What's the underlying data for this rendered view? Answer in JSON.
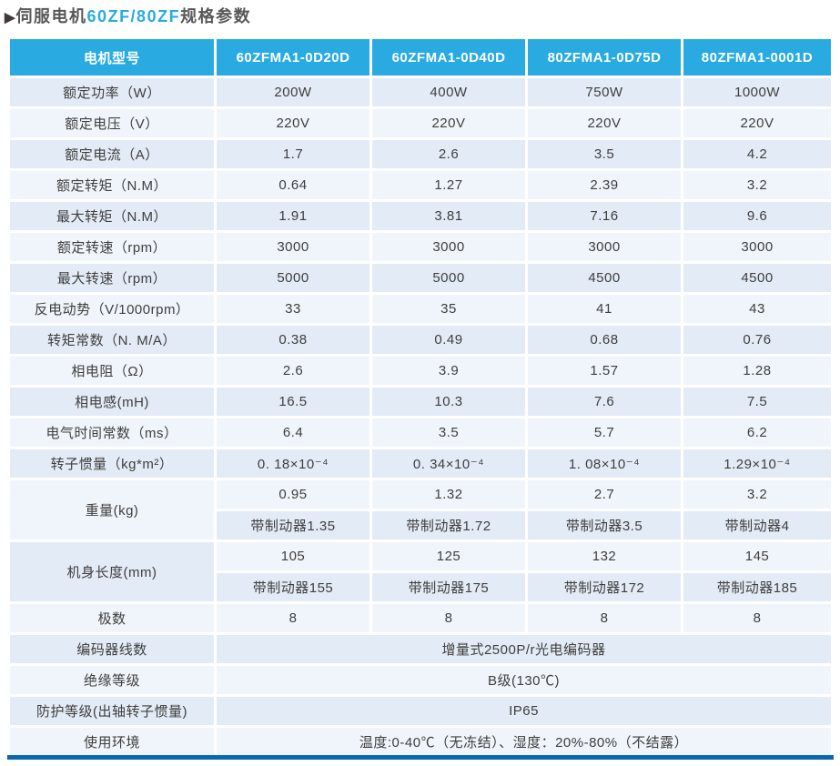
{
  "title": {
    "arrow": "▶",
    "prefix": "伺服电机",
    "highlight": "60ZF/80ZF",
    "suffix": "规格参数"
  },
  "colors": {
    "header_bg": "#29abe2",
    "accent": "#29abe2",
    "row_shade_a": "#e3ebf6",
    "row_shade_b": "#f0f5fb",
    "bottom_bar": "#0a67b0",
    "cell_text": "#3e3e3e",
    "title_text": "#595757"
  },
  "table": {
    "header": [
      "电机型号",
      "60ZFMA1-0D20D",
      "60ZFMA1-0D40D",
      "80ZFMA1-0D75D",
      "80ZFMA1-0001D"
    ],
    "rows": [
      {
        "label": "额定功率（W）",
        "values": [
          "200W",
          "400W",
          "750W",
          "1000W"
        ]
      },
      {
        "label": "额定电压（V）",
        "values": [
          "220V",
          "220V",
          "220V",
          "220V"
        ]
      },
      {
        "label": "额定电流（A）",
        "values": [
          "1.7",
          "2.6",
          "3.5",
          "4.2"
        ]
      },
      {
        "label": "额定转矩（N.M）",
        "values": [
          "0.64",
          "1.27",
          "2.39",
          "3.2"
        ]
      },
      {
        "label": "最大转矩（N.M）",
        "values": [
          "1.91",
          "3.81",
          "7.16",
          "9.6"
        ]
      },
      {
        "label": "额定转速（rpm）",
        "values": [
          "3000",
          "3000",
          "3000",
          "3000"
        ]
      },
      {
        "label": "最大转速（rpm）",
        "values": [
          "5000",
          "5000",
          "4500",
          "4500"
        ]
      },
      {
        "label": "反电动势（V/1000rpm）",
        "values": [
          "33",
          "35",
          "41",
          "43"
        ]
      },
      {
        "label": "转矩常数（N. M/A）",
        "values": [
          "0.38",
          "0.49",
          "0.68",
          "0.76"
        ]
      },
      {
        "label": "相电阻（Ω）",
        "values": [
          "2.6",
          "3.9",
          "1.57",
          "1.28"
        ]
      },
      {
        "label": "相电感(mH)",
        "values": [
          "16.5",
          "10.3",
          "7.6",
          "7.5"
        ]
      },
      {
        "label": "电气时间常数（ms）",
        "values": [
          "6.4",
          "3.5",
          "5.7",
          "6.2"
        ]
      },
      {
        "label": "转子惯量（kg*m²）",
        "values": [
          "0. 18×10⁻⁴",
          "0. 34×10⁻⁴",
          "1. 08×10⁻⁴",
          "1.29×10⁻⁴"
        ]
      },
      {
        "label": "重量(kg)",
        "label_rowspan": 2,
        "label_shade": "b",
        "values": [
          "0.95",
          "1.32",
          "2.7",
          "3.2"
        ]
      },
      {
        "values": [
          "带制动器1.35",
          "带制动器1.72",
          "带制动器3.5",
          "带制动器4"
        ]
      },
      {
        "label": "机身长度(mm)",
        "label_rowspan": 2,
        "label_shade": "a",
        "values": [
          "105",
          "125",
          "132",
          "145"
        ]
      },
      {
        "values": [
          "带制动器155",
          "带制动器175",
          "带制动器172",
          "带制动器185"
        ]
      },
      {
        "label": "极数",
        "values": [
          "8",
          "8",
          "8",
          "8"
        ]
      },
      {
        "label": "编码器线数",
        "merged": "增量式2500P/r光电编码器"
      },
      {
        "label": "绝缘等级",
        "merged": "B级(130℃)"
      },
      {
        "label": "防护等级(出轴转子惯量)",
        "merged": "IP65"
      },
      {
        "label": "使用环境",
        "merged": "温度:0-40℃（无冻结）、湿度：20%-80%（不结露）"
      }
    ]
  }
}
